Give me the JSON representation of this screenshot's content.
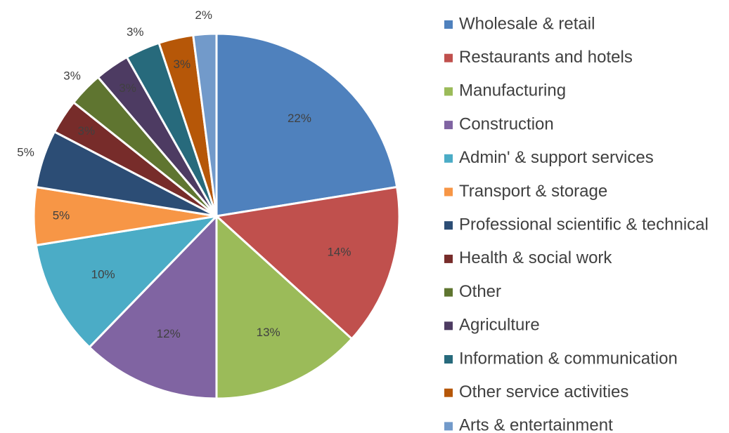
{
  "chart_data": {
    "type": "pie",
    "categories": [
      "Wholesale & retail",
      "Restaurants and hotels",
      "Manufacturing",
      "Construction",
      "Admin' & support services",
      "Transport & storage",
      "Professional scientific & technical",
      "Health & social work",
      "Other",
      "Agriculture",
      "Information & communication",
      "Other service activities",
      "Arts & entertainment"
    ],
    "values": [
      22,
      14,
      13,
      12,
      10,
      5,
      5,
      3,
      3,
      3,
      3,
      3,
      2
    ],
    "value_labels": [
      "22%",
      "14%",
      "13%",
      "12%",
      "10%",
      "5%",
      "5%",
      "3%",
      "3%",
      "3%",
      "3%",
      "3%",
      "2%"
    ],
    "colors": [
      "#4f81bd",
      "#c0504d",
      "#9bbb59",
      "#8064a2",
      "#4bacc6",
      "#f79646",
      "#2c4d75",
      "#772c2a",
      "#5f7530",
      "#4d3b62",
      "#276a7c",
      "#b65708",
      "#729aca"
    ],
    "legend": "right"
  }
}
